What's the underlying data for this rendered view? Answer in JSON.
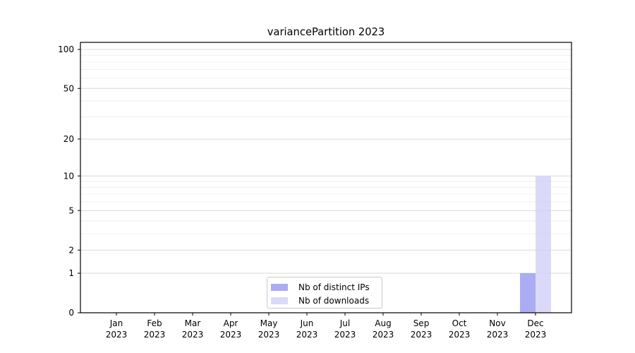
{
  "chart_data": {
    "type": "bar",
    "title": "variancePartition 2023",
    "categories": [
      "Jan 2023",
      "Feb 2023",
      "Mar 2023",
      "Apr 2023",
      "May 2023",
      "Jun 2023",
      "Jul 2023",
      "Aug 2023",
      "Sep 2023",
      "Oct 2023",
      "Nov 2023",
      "Dec 2023"
    ],
    "series": [
      {
        "name": "Nb of distinct IPs",
        "color": "#9595f1",
        "values": [
          0,
          0,
          0,
          0,
          0,
          0,
          0,
          0,
          0,
          0,
          0,
          1
        ]
      },
      {
        "name": "Nb of downloads",
        "color": "#cfcff6",
        "values": [
          0,
          0,
          0,
          0,
          0,
          0,
          0,
          0,
          0,
          0,
          0,
          10
        ]
      }
    ],
    "y_axis": {
      "scale": "log10(1+v)",
      "ticks": [
        0,
        1,
        2,
        5,
        10,
        20,
        50,
        100
      ],
      "range": [
        0,
        113
      ]
    },
    "x_axis": {
      "tick_label_lines": 2
    },
    "grid": {
      "axis": "y",
      "major_color": "#d9d9d9",
      "minor_color": "#f0f0f0"
    },
    "legend": {
      "position": "lower center"
    },
    "colors": {
      "background": "#ffffff",
      "axis": "#000000",
      "text": "#000000"
    }
  }
}
